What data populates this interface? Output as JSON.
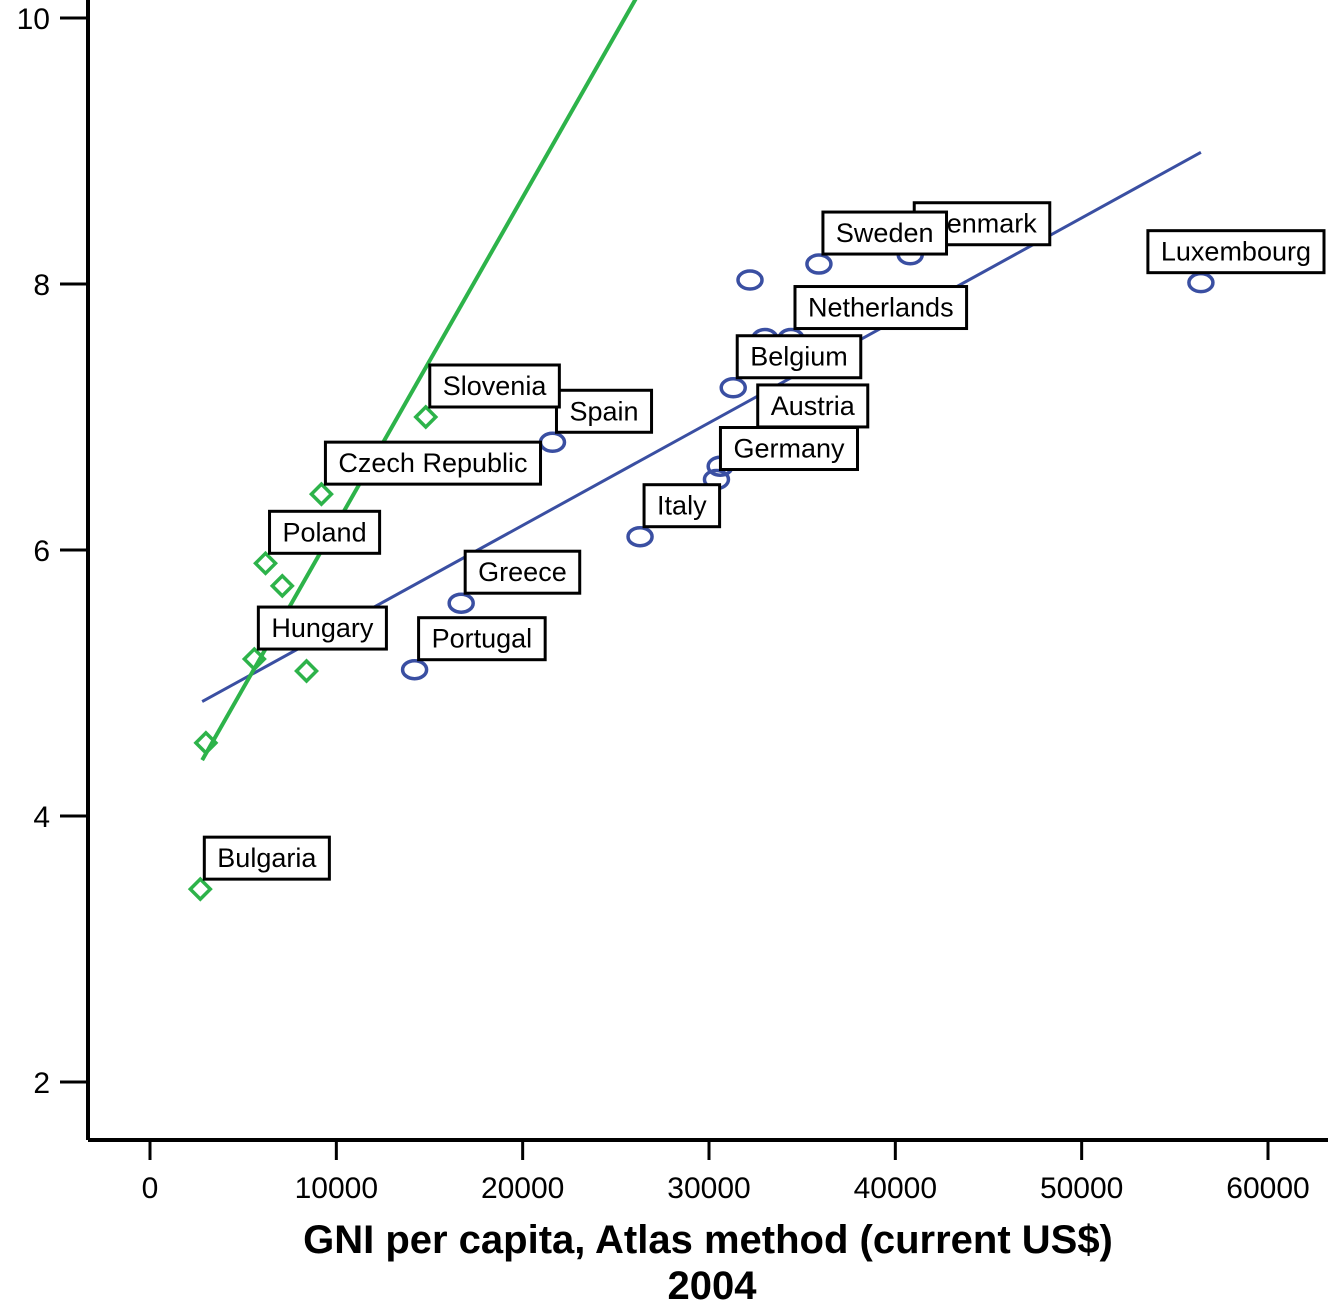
{
  "chart_data": {
    "type": "scatter",
    "title": "",
    "xlabel_lines": [
      "GNI per capita, Atlas method (current US$)",
      "2004"
    ],
    "ylabel": "",
    "xlim": [
      -3300,
      60000
    ],
    "ylim": [
      1.55,
      10.2
    ],
    "x_ticks": [
      0,
      10000,
      20000,
      30000,
      40000,
      50000,
      60000
    ],
    "x_tick_labels": [
      "0",
      "10000",
      "20000",
      "30000",
      "40000",
      "50000",
      "60000"
    ],
    "y_ticks": [
      2,
      4,
      6,
      8,
      10
    ],
    "y_tick_labels": [
      "2",
      "4",
      "6",
      "8",
      "10"
    ],
    "grid": false,
    "colors": {
      "group_a": "#3a4fa2",
      "group_b": "#2db34a"
    },
    "series": [
      {
        "marker": "circle",
        "color": "#3a4fa2",
        "points": [
          {
            "x": 56400,
            "y": 8.01,
            "label": "Luxembourg"
          },
          {
            "x": 40800,
            "y": 8.22,
            "label": "Denmark"
          },
          {
            "x": 35900,
            "y": 8.15,
            "label": "Sweden"
          },
          {
            "x": 32200,
            "y": 8.03,
            "label": ""
          },
          {
            "x": 34400,
            "y": 7.59,
            "label": "Netherlands"
          },
          {
            "x": 33000,
            "y": 7.59,
            "label": ""
          },
          {
            "x": 31300,
            "y": 7.22,
            "label": "Belgium"
          },
          {
            "x": 32400,
            "y": 6.85,
            "label": "Austria"
          },
          {
            "x": 21600,
            "y": 6.81,
            "label": "Spain"
          },
          {
            "x": 30600,
            "y": 6.63,
            "label": ""
          },
          {
            "x": 30400,
            "y": 6.53,
            "label": "Germany"
          },
          {
            "x": 26300,
            "y": 6.1,
            "label": "Italy"
          },
          {
            "x": 16700,
            "y": 5.6,
            "label": "Greece"
          },
          {
            "x": 14200,
            "y": 5.1,
            "label": "Portugal"
          }
        ],
        "fit": {
          "x": [
            2800,
            56400
          ],
          "y": [
            4.86,
            8.99
          ]
        }
      },
      {
        "marker": "diamond",
        "color": "#2db34a",
        "points": [
          {
            "x": 14800,
            "y": 7.0,
            "label": "Slovenia"
          },
          {
            "x": 9200,
            "y": 6.42,
            "label": "Czech Republic"
          },
          {
            "x": 6200,
            "y": 5.9,
            "label": "Poland"
          },
          {
            "x": 7100,
            "y": 5.73,
            "label": ""
          },
          {
            "x": 6600,
            "y": 5.47,
            "label": ""
          },
          {
            "x": 5600,
            "y": 5.18,
            "label": "Hungary"
          },
          {
            "x": 8400,
            "y": 5.09,
            "label": ""
          },
          {
            "x": 3000,
            "y": 4.55,
            "label": ""
          },
          {
            "x": 2700,
            "y": 3.45,
            "label": "Bulgaria"
          }
        ],
        "fit": {
          "x": [
            2800,
            26500
          ],
          "y": [
            4.42,
            10.25
          ]
        }
      }
    ]
  }
}
